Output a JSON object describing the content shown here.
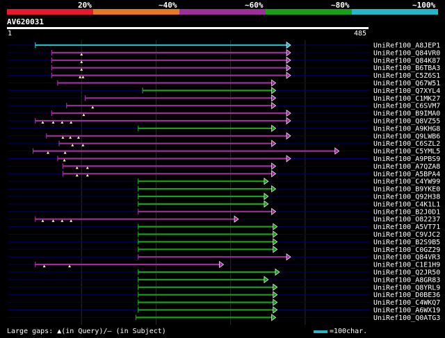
{
  "legend": {
    "labels": [
      "20%",
      "~40%",
      "~60%",
      "~80%",
      "~100%"
    ],
    "colors": [
      "#e8192c",
      "#e87722",
      "#9c2f9c",
      "#16a116",
      "#22b8c8"
    ]
  },
  "query": {
    "id": "AV620031",
    "start": "1",
    "end": "485",
    "length": 485
  },
  "colors": {
    "cyan": "#22b8c8",
    "magenta": "#9c2f9c",
    "green": "#16a116",
    "background": "#000000",
    "guide": "#000066"
  },
  "hits": [
    {
      "name": "UniRef100_A8JEP1",
      "start": 38,
      "end": 375,
      "color": "cyan",
      "gaps": []
    },
    {
      "name": "UniRef100_Q84VR0",
      "start": 60,
      "end": 375,
      "color": "magenta",
      "gaps": [
        100
      ]
    },
    {
      "name": "UniRef100_Q84K87",
      "start": 60,
      "end": 375,
      "color": "magenta",
      "gaps": [
        100
      ]
    },
    {
      "name": "UniRef100_B6TBA3",
      "start": 60,
      "end": 375,
      "color": "magenta",
      "gaps": [
        100
      ]
    },
    {
      "name": "UniRef100_C5Z6S1",
      "start": 60,
      "end": 375,
      "color": "magenta",
      "gaps": [
        98,
        102
      ]
    },
    {
      "name": "UniRef100_Q67W51",
      "start": 68,
      "end": 355,
      "color": "magenta",
      "gaps": []
    },
    {
      "name": "UniRef100_Q7XYL4",
      "start": 182,
      "end": 355,
      "color": "green",
      "gaps": []
    },
    {
      "name": "UniRef100_C1MK27",
      "start": 105,
      "end": 355,
      "color": "magenta",
      "gaps": []
    },
    {
      "name": "UniRef100_C6SVM7",
      "start": 80,
      "end": 355,
      "color": "magenta",
      "gaps": [
        115
      ]
    },
    {
      "name": "UniRef100_B9IMA0",
      "start": 60,
      "end": 375,
      "color": "magenta",
      "gaps": [
        103
      ]
    },
    {
      "name": "UniRef100_Q8VZ55",
      "start": 38,
      "end": 375,
      "color": "magenta",
      "gaps": [
        48,
        62,
        74,
        86
      ]
    },
    {
      "name": "UniRef100_A9KHG8",
      "start": 176,
      "end": 355,
      "color": "green",
      "gaps": []
    },
    {
      "name": "UniRef100_Q9LWB6",
      "start": 53,
      "end": 375,
      "color": "magenta",
      "gaps": [
        75,
        85,
        96
      ]
    },
    {
      "name": "UniRef100_C6SZL2",
      "start": 70,
      "end": 355,
      "color": "magenta",
      "gaps": [
        88,
        102
      ]
    },
    {
      "name": "UniRef100_C5YML5",
      "start": 35,
      "end": 440,
      "color": "magenta",
      "gaps": [
        55,
        78
      ]
    },
    {
      "name": "UniRef100_A9PBS9",
      "start": 68,
      "end": 375,
      "color": "magenta",
      "gaps": [
        77
      ]
    },
    {
      "name": "UniRef100_A7QZA8",
      "start": 75,
      "end": 355,
      "color": "magenta",
      "gaps": [
        94,
        108
      ]
    },
    {
      "name": "UniRef100_A5BPA4",
      "start": 75,
      "end": 355,
      "color": "magenta",
      "gaps": [
        94,
        108
      ]
    },
    {
      "name": "UniRef100_C4YW99",
      "start": 176,
      "end": 345,
      "color": "green",
      "gaps": []
    },
    {
      "name": "UniRef100_B9YKE0",
      "start": 176,
      "end": 355,
      "color": "green",
      "gaps": []
    },
    {
      "name": "UniRef100_Q92H38",
      "start": 176,
      "end": 345,
      "color": "green",
      "gaps": []
    },
    {
      "name": "UniRef100_C4K1L1",
      "start": 176,
      "end": 345,
      "color": "green",
      "gaps": []
    },
    {
      "name": "UniRef100_B2J0D1",
      "start": 176,
      "end": 355,
      "color": "magenta",
      "gaps": []
    },
    {
      "name": "UniRef100_O82237",
      "start": 38,
      "end": 305,
      "color": "magenta",
      "gaps": [
        48,
        62,
        74,
        86
      ]
    },
    {
      "name": "UniRef100_A5VT71",
      "start": 176,
      "end": 357,
      "color": "green",
      "gaps": []
    },
    {
      "name": "UniRef100_C9VJC2",
      "start": 176,
      "end": 357,
      "color": "green",
      "gaps": []
    },
    {
      "name": "UniRef100_B2S9B5",
      "start": 176,
      "end": 357,
      "color": "green",
      "gaps": []
    },
    {
      "name": "UniRef100_C0GZ29",
      "start": 176,
      "end": 357,
      "color": "green",
      "gaps": []
    },
    {
      "name": "UniRef100_Q84VR3",
      "start": 176,
      "end": 375,
      "color": "magenta",
      "gaps": []
    },
    {
      "name": "UniRef100_C1E1H9",
      "start": 38,
      "end": 285,
      "color": "magenta",
      "gaps": [
        50,
        84
      ]
    },
    {
      "name": "UniRef100_Q2JR50",
      "start": 176,
      "end": 360,
      "color": "green",
      "gaps": []
    },
    {
      "name": "UniRef100_A8GR83",
      "start": 176,
      "end": 345,
      "color": "green",
      "gaps": []
    },
    {
      "name": "UniRef100_Q8YRL9",
      "start": 176,
      "end": 357,
      "color": "green",
      "gaps": []
    },
    {
      "name": "UniRef100_D0BE36",
      "start": 176,
      "end": 357,
      "color": "green",
      "gaps": []
    },
    {
      "name": "UniRef100_C4WKQ7",
      "start": 176,
      "end": 357,
      "color": "green",
      "gaps": []
    },
    {
      "name": "UniRef100_A6WX19",
      "start": 176,
      "end": 357,
      "color": "green",
      "gaps": []
    },
    {
      "name": "UniRef100_Q0ATG3",
      "start": 173,
      "end": 355,
      "color": "green",
      "gaps": []
    }
  ],
  "footer": {
    "gap_text": "Large gaps: ▲(in Query)/– (in Subject)",
    "scale_text": "=100char."
  }
}
